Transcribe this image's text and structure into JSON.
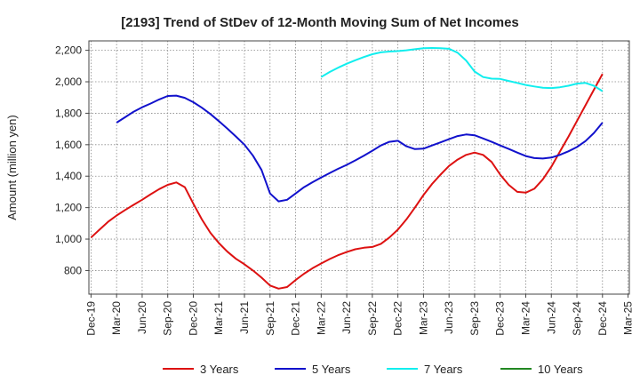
{
  "chart_data": {
    "type": "line",
    "title": "[2193]  Trend of StDev of 12-Month Moving Sum of Net Incomes",
    "ylabel": "Amount (million yen)",
    "xlabel": "",
    "ylim": [
      650,
      2260
    ],
    "yticks": [
      800,
      1000,
      1200,
      1400,
      1600,
      1800,
      2000,
      2200
    ],
    "ytick_labels": [
      "800",
      "1,000",
      "1,200",
      "1,400",
      "1,600",
      "1,800",
      "2,000",
      "2,200"
    ],
    "xticks": [
      "2019-12",
      "2020-03",
      "2020-06",
      "2020-09",
      "2020-12",
      "2021-03",
      "2021-06",
      "2021-09",
      "2021-12",
      "2022-03",
      "2022-06",
      "2022-09",
      "2022-12",
      "2023-03",
      "2023-06",
      "2023-09",
      "2023-12",
      "2024-03",
      "2024-06",
      "2024-09",
      "2024-12",
      "2025-03"
    ],
    "xtick_labels": [
      "Dec-19",
      "Mar-20",
      "Jun-20",
      "Sep-20",
      "Dec-20",
      "Mar-21",
      "Jun-21",
      "Sep-21",
      "Dec-21",
      "Mar-22",
      "Jun-22",
      "Sep-22",
      "Dec-22",
      "Mar-23",
      "Jun-23",
      "Sep-23",
      "Dec-23",
      "Mar-24",
      "Jun-24",
      "Sep-24",
      "Dec-24",
      "Mar-25"
    ],
    "grid": true,
    "legend": "bottom",
    "series": [
      {
        "name": "3 Years",
        "color": "#dd1111",
        "x": [
          "2019-12",
          "2020-01",
          "2020-02",
          "2020-03",
          "2020-04",
          "2020-05",
          "2020-06",
          "2020-07",
          "2020-08",
          "2020-09",
          "2020-10",
          "2020-11",
          "2020-12",
          "2021-01",
          "2021-02",
          "2021-03",
          "2021-04",
          "2021-05",
          "2021-06",
          "2021-07",
          "2021-08",
          "2021-09",
          "2021-10",
          "2021-11",
          "2021-12",
          "2022-01",
          "2022-02",
          "2022-03",
          "2022-04",
          "2022-05",
          "2022-06",
          "2022-07",
          "2022-08",
          "2022-09",
          "2022-10",
          "2022-11",
          "2022-12",
          "2023-01",
          "2023-02",
          "2023-03",
          "2023-04",
          "2023-05",
          "2023-06",
          "2023-07",
          "2023-08",
          "2023-09",
          "2023-10",
          "2023-11",
          "2023-12",
          "2024-01",
          "2024-02",
          "2024-03",
          "2024-04",
          "2024-05",
          "2024-06",
          "2024-07",
          "2024-08",
          "2024-09",
          "2024-10",
          "2024-11",
          "2024-12"
        ],
        "values": [
          1010,
          1060,
          1110,
          1150,
          1185,
          1218,
          1250,
          1285,
          1318,
          1345,
          1360,
          1330,
          1225,
          1125,
          1040,
          975,
          920,
          875,
          840,
          800,
          755,
          705,
          685,
          695,
          740,
          780,
          815,
          845,
          873,
          898,
          918,
          935,
          945,
          950,
          970,
          1010,
          1060,
          1125,
          1200,
          1280,
          1350,
          1410,
          1465,
          1505,
          1535,
          1550,
          1535,
          1490,
          1410,
          1345,
          1300,
          1295,
          1320,
          1380,
          1460,
          1555,
          1650,
          1750,
          1850,
          1950,
          2050
        ]
      },
      {
        "name": "5 Years",
        "color": "#1111cc",
        "x": [
          "2020-03",
          "2020-04",
          "2020-05",
          "2020-06",
          "2020-07",
          "2020-08",
          "2020-09",
          "2020-10",
          "2020-11",
          "2020-12",
          "2021-01",
          "2021-02",
          "2021-03",
          "2021-04",
          "2021-05",
          "2021-06",
          "2021-07",
          "2021-08",
          "2021-09",
          "2021-10",
          "2021-11",
          "2021-12",
          "2022-01",
          "2022-02",
          "2022-03",
          "2022-04",
          "2022-05",
          "2022-06",
          "2022-07",
          "2022-08",
          "2022-09",
          "2022-10",
          "2022-11",
          "2022-12",
          "2023-01",
          "2023-02",
          "2023-03",
          "2023-04",
          "2023-05",
          "2023-06",
          "2023-07",
          "2023-08",
          "2023-09",
          "2023-10",
          "2023-11",
          "2023-12",
          "2024-01",
          "2024-02",
          "2024-03",
          "2024-04",
          "2024-05",
          "2024-06",
          "2024-07",
          "2024-08",
          "2024-09",
          "2024-10",
          "2024-11",
          "2024-12"
        ],
        "values": [
          1740,
          1775,
          1810,
          1838,
          1862,
          1888,
          1910,
          1912,
          1898,
          1870,
          1835,
          1795,
          1750,
          1702,
          1652,
          1600,
          1530,
          1440,
          1290,
          1240,
          1250,
          1290,
          1330,
          1362,
          1392,
          1420,
          1447,
          1472,
          1500,
          1530,
          1562,
          1595,
          1618,
          1625,
          1590,
          1572,
          1575,
          1595,
          1615,
          1635,
          1655,
          1665,
          1660,
          1640,
          1618,
          1595,
          1573,
          1550,
          1528,
          1515,
          1512,
          1518,
          1535,
          1558,
          1585,
          1623,
          1675,
          1740
        ]
      },
      {
        "name": "7 Years",
        "color": "#11eeee",
        "x": [
          "2022-03",
          "2022-04",
          "2022-05",
          "2022-06",
          "2022-07",
          "2022-08",
          "2022-09",
          "2022-10",
          "2022-11",
          "2022-12",
          "2023-01",
          "2023-02",
          "2023-03",
          "2023-04",
          "2023-05",
          "2023-06",
          "2023-07",
          "2023-08",
          "2023-09",
          "2023-10",
          "2023-11",
          "2023-12",
          "2024-01",
          "2024-02",
          "2024-03",
          "2024-04",
          "2024-05",
          "2024-06",
          "2024-07",
          "2024-08",
          "2024-09",
          "2024-10",
          "2024-11",
          "2024-12"
        ],
        "values": [
          2030,
          2062,
          2090,
          2115,
          2137,
          2157,
          2175,
          2187,
          2192,
          2195,
          2200,
          2207,
          2213,
          2215,
          2213,
          2210,
          2185,
          2135,
          2065,
          2030,
          2020,
          2018,
          2005,
          1993,
          1980,
          1970,
          1962,
          1960,
          1965,
          1975,
          1988,
          1993,
          1975,
          1940
        ]
      },
      {
        "name": "10 Years",
        "color": "#228822",
        "x": [],
        "values": []
      }
    ]
  }
}
